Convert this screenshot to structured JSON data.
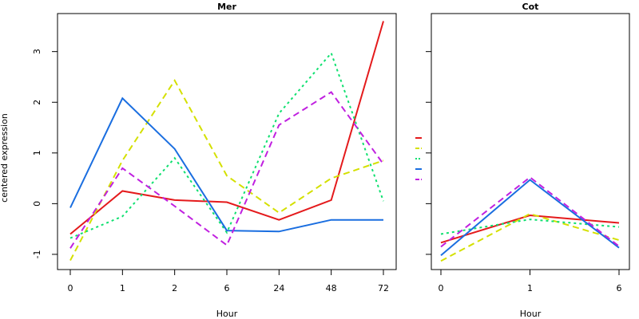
{
  "chart_data": {
    "type": "line",
    "ylabel": "centered expression",
    "ylim": [
      -1.3,
      3.75
    ],
    "yticks": [
      -1,
      0,
      1,
      2,
      3
    ],
    "panels": [
      {
        "title": "Mer",
        "xlabel": "Hour",
        "categories": [
          "0",
          "1",
          "2",
          "6",
          "24",
          "48",
          "72"
        ],
        "series": [
          {
            "color": "#e41a1c",
            "dash": "solid",
            "values": [
              -0.6,
              0.25,
              0.07,
              0.03,
              -0.32,
              0.07,
              3.6
            ]
          },
          {
            "color": "#d4e000",
            "dash": "dashed",
            "values": [
              -1.12,
              0.85,
              2.43,
              0.55,
              -0.18,
              0.5,
              0.85
            ]
          },
          {
            "color": "#10e070",
            "dash": "dotted",
            "values": [
              -0.68,
              -0.25,
              0.9,
              -0.57,
              1.78,
              2.97,
              0.05
            ]
          },
          {
            "color": "#1a6ee0",
            "dash": "solid",
            "values": [
              -0.08,
              2.08,
              1.08,
              -0.53,
              -0.55,
              -0.32,
              -0.32
            ]
          },
          {
            "color": "#c020e0",
            "dash": "dashed",
            "values": [
              -0.88,
              0.7,
              -0.05,
              -0.82,
              1.55,
              2.2,
              0.78
            ]
          }
        ]
      },
      {
        "title": "Cot",
        "xlabel": "Hour",
        "categories": [
          "0",
          "1",
          "6"
        ],
        "series": [
          {
            "color": "#e41a1c",
            "dash": "solid",
            "values": [
              -0.77,
              -0.23,
              -0.38
            ]
          },
          {
            "color": "#d4e000",
            "dash": "dashed",
            "values": [
              -1.13,
              -0.2,
              -0.72
            ]
          },
          {
            "color": "#10e070",
            "dash": "dotted",
            "values": [
              -0.6,
              -0.31,
              -0.46
            ]
          },
          {
            "color": "#1a6ee0",
            "dash": "solid",
            "values": [
              -1.02,
              0.47,
              -0.87
            ]
          },
          {
            "color": "#c020e0",
            "dash": "dashed",
            "values": [
              -0.85,
              0.52,
              -0.84
            ]
          }
        ]
      }
    ],
    "legend": {
      "placement": "between-panels",
      "entries": [
        {
          "color": "#e41a1c",
          "dash": "solid",
          "label": ""
        },
        {
          "color": "#d4e000",
          "dash": "dashed",
          "label": ""
        },
        {
          "color": "#10e070",
          "dash": "dotted",
          "label": ""
        },
        {
          "color": "#1a6ee0",
          "dash": "solid",
          "label": ""
        },
        {
          "color": "#c020e0",
          "dash": "dashed",
          "label": ""
        }
      ]
    }
  }
}
